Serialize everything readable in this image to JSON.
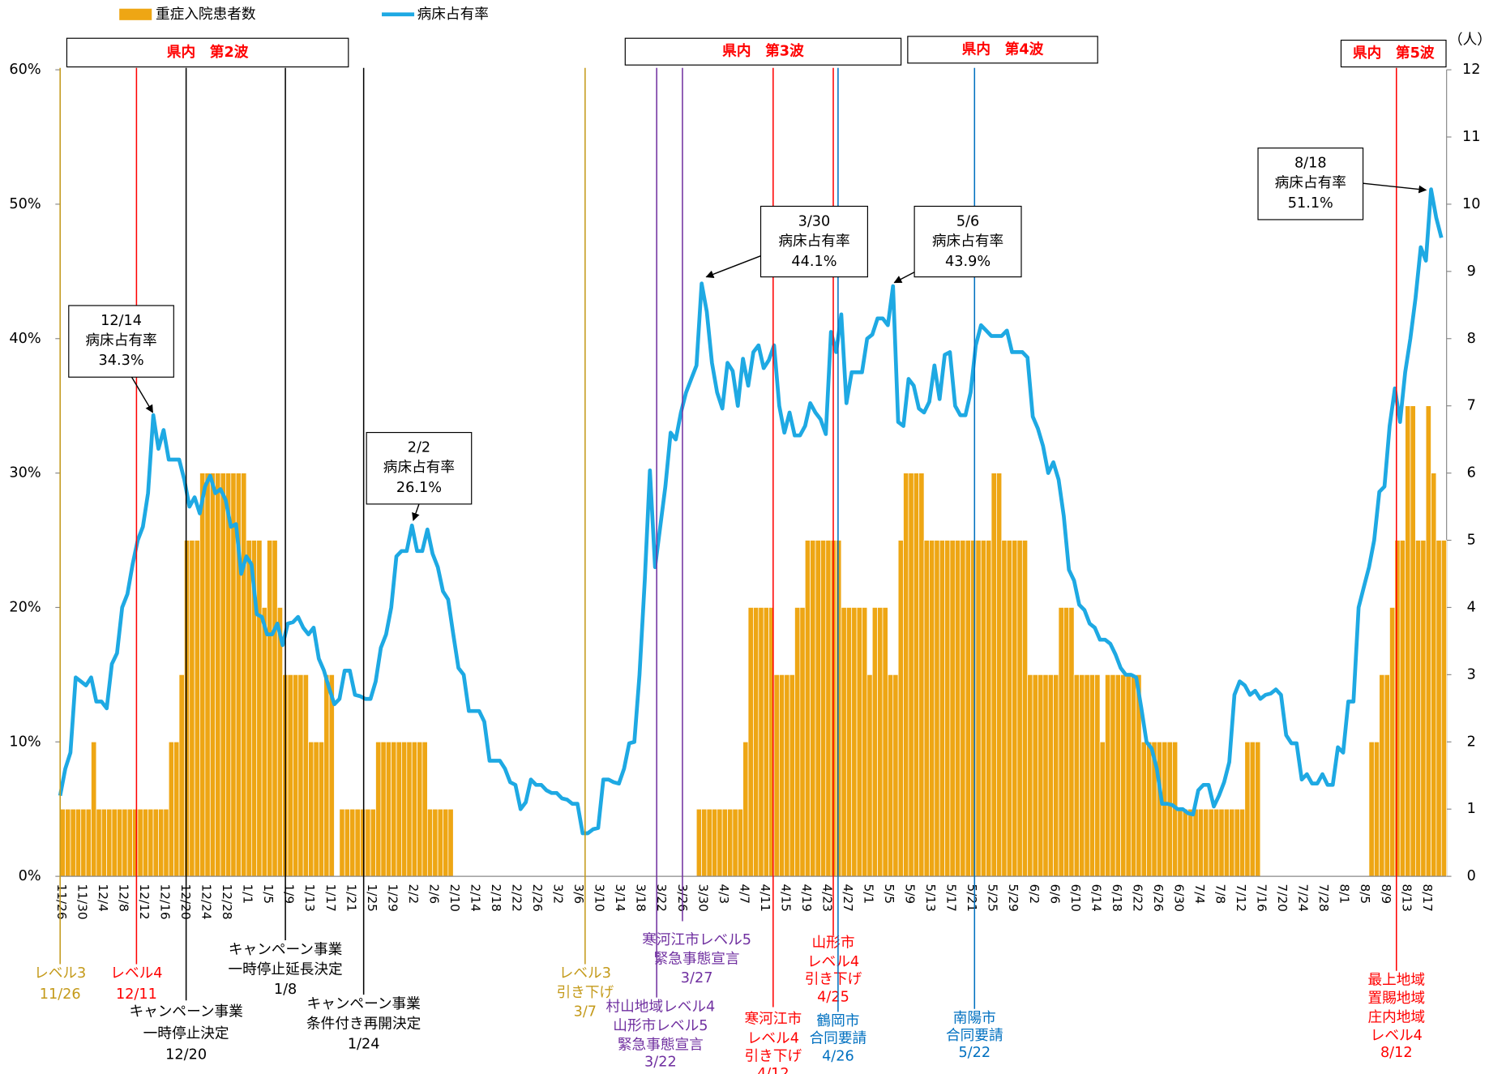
{
  "chart_data": {
    "type": "combo",
    "categories": [
      "11/26",
      null,
      null,
      null,
      "11/30",
      null,
      null,
      null,
      "12/4",
      null,
      null,
      null,
      "12/8",
      null,
      null,
      null,
      "12/12",
      null,
      null,
      null,
      "12/16",
      null,
      null,
      null,
      "12/20",
      null,
      null,
      null,
      "12/24",
      null,
      null,
      null,
      "12/28",
      null,
      null,
      null,
      "1/1",
      null,
      null,
      null,
      "1/5",
      null,
      null,
      null,
      "1/9",
      null,
      null,
      null,
      "1/13",
      null,
      null,
      null,
      "1/17",
      null,
      null,
      null,
      "1/21",
      null,
      null,
      null,
      "1/25",
      null,
      null,
      null,
      "1/29",
      null,
      null,
      null,
      "2/2",
      null,
      null,
      null,
      "2/6",
      null,
      null,
      null,
      "2/10",
      null,
      null,
      null,
      "2/14",
      null,
      null,
      null,
      "2/18",
      null,
      null,
      null,
      "2/22",
      null,
      null,
      null,
      "2/26",
      null,
      null,
      null,
      "3/2",
      null,
      null,
      null,
      "3/6",
      null,
      null,
      null,
      "3/10",
      null,
      null,
      null,
      "3/14",
      null,
      null,
      null,
      "3/18",
      null,
      null,
      null,
      "3/22",
      null,
      null,
      null,
      "3/26",
      null,
      null,
      null,
      "3/30",
      null,
      null,
      null,
      "4/3",
      null,
      null,
      null,
      "4/7",
      null,
      null,
      null,
      "4/11",
      null,
      null,
      null,
      "4/15",
      null,
      null,
      null,
      "4/19",
      null,
      null,
      null,
      "4/23",
      null,
      null,
      null,
      "4/27",
      null,
      null,
      null,
      "5/1",
      null,
      null,
      null,
      "5/5",
      null,
      null,
      null,
      "5/9",
      null,
      null,
      null,
      "5/13",
      null,
      null,
      null,
      "5/17",
      null,
      null,
      null,
      "5/21",
      null,
      null,
      null,
      "5/25",
      null,
      null,
      null,
      "5/29",
      null,
      null,
      null,
      "6/2",
      null,
      null,
      null,
      "6/6",
      null,
      null,
      null,
      "6/10",
      null,
      null,
      null,
      "6/14",
      null,
      null,
      null,
      "6/18",
      null,
      null,
      null,
      "6/22",
      null,
      null,
      null,
      "6/26",
      null,
      null,
      null,
      "6/30",
      null,
      null,
      null,
      "7/4",
      null,
      null,
      null,
      "7/8",
      null,
      null,
      null,
      "7/12",
      null,
      null,
      null,
      "7/16",
      null,
      null,
      null,
      "7/20",
      null,
      null,
      null,
      "7/24",
      null,
      null,
      null,
      "7/28",
      null,
      null,
      null,
      "8/1",
      null,
      null,
      null,
      "8/5",
      null,
      null,
      null,
      "8/9",
      null,
      null,
      null,
      "8/13",
      null,
      null,
      null,
      "8/17",
      null,
      null,
      null
    ],
    "series": [
      {
        "name": "重症入院患者数",
        "type": "bar",
        "axis": "y2",
        "color": "#eea614",
        "values": [
          1,
          1,
          1,
          1,
          1,
          1,
          2,
          1,
          1,
          1,
          1,
          1,
          1,
          1,
          1,
          1,
          1,
          1,
          1,
          1,
          1,
          2,
          2,
          3,
          5,
          5,
          5,
          6,
          6,
          6,
          6,
          6,
          6,
          6,
          6,
          6,
          5,
          5,
          5,
          4,
          5,
          5,
          4,
          3,
          3,
          3,
          3,
          3,
          2,
          2,
          2,
          3,
          3,
          0,
          1,
          1,
          1,
          1,
          1,
          1,
          1,
          2,
          2,
          2,
          2,
          2,
          2,
          2,
          2,
          2,
          2,
          1,
          1,
          1,
          1,
          1,
          0,
          0,
          0,
          0,
          0,
          0,
          0,
          0,
          0,
          0,
          0,
          0,
          0,
          0,
          0,
          0,
          0,
          0,
          0,
          0,
          0,
          0,
          0,
          0,
          0,
          0,
          0,
          0,
          0,
          0,
          0,
          0,
          0,
          0,
          0,
          0,
          0,
          0,
          0,
          0,
          0,
          0,
          0,
          0,
          0,
          0,
          0,
          1,
          1,
          1,
          1,
          1,
          1,
          1,
          1,
          1,
          2,
          4,
          4,
          4,
          4,
          4,
          3,
          3,
          3,
          3,
          4,
          4,
          5,
          5,
          5,
          5,
          5,
          5,
          5,
          4,
          4,
          4,
          4,
          4,
          3,
          4,
          4,
          4,
          3,
          3,
          5,
          6,
          6,
          6,
          6,
          5,
          5,
          5,
          5,
          5,
          5,
          5,
          5,
          5,
          5,
          5,
          5,
          5,
          6,
          6,
          5,
          5,
          5,
          5,
          5,
          3,
          3,
          3,
          3,
          3,
          3,
          4,
          4,
          4,
          3,
          3,
          3,
          3,
          3,
          2,
          3,
          3,
          3,
          3,
          3,
          3,
          3,
          2,
          2,
          2,
          2,
          2,
          2,
          2,
          1,
          1,
          1,
          1,
          1,
          1,
          1,
          1,
          1,
          1,
          1,
          1,
          1,
          2,
          2,
          2,
          0,
          0,
          0,
          0,
          0,
          0,
          0,
          0,
          0,
          0,
          0,
          0,
          0,
          0,
          0,
          0,
          0,
          0,
          0,
          0,
          0,
          2,
          2,
          3,
          3,
          4,
          5,
          5,
          7,
          7,
          5,
          5,
          7,
          6,
          5,
          5
        ]
      },
      {
        "name": "病床占有率",
        "type": "line",
        "color": "#1ea9e3",
        "values": [
          6.0,
          8.0,
          9.2,
          14.8,
          14.5,
          14.2,
          14.8,
          13.0,
          13.0,
          12.5,
          15.8,
          16.6,
          20.0,
          21.0,
          23.2,
          25.0,
          26.0,
          28.5,
          34.3,
          31.8,
          33.2,
          31.0,
          31.0,
          31.0,
          29.5,
          27.5,
          28.2,
          27.0,
          29.0,
          29.8,
          28.5,
          28.8,
          28.0,
          26.0,
          26.2,
          22.5,
          23.8,
          23.2,
          19.5,
          19.3,
          18.0,
          18.0,
          18.8,
          17.2,
          18.8,
          18.9,
          19.3,
          18.5,
          18.0,
          18.5,
          16.2,
          15.3,
          14.0,
          12.8,
          13.2,
          15.3,
          15.3,
          13.5,
          13.4,
          13.2,
          13.2,
          14.5,
          17.0,
          18.0,
          20.0,
          23.8,
          24.2,
          24.2,
          26.1,
          24.2,
          24.2,
          25.8,
          24.0,
          23.0,
          21.2,
          20.6,
          18.0,
          15.5,
          15.0,
          12.3,
          12.3,
          12.3,
          11.5,
          8.6,
          8.6,
          8.6,
          8.0,
          7.0,
          6.8,
          5.0,
          5.5,
          7.2,
          6.8,
          6.8,
          6.4,
          6.2,
          6.2,
          5.8,
          5.7,
          5.4,
          5.4,
          3.2,
          3.2,
          3.5,
          3.6,
          7.2,
          7.2,
          7.0,
          6.9,
          8.0,
          9.9,
          10.0,
          15.0,
          22.0,
          30.2,
          23.0,
          26.0,
          29.0,
          33.0,
          32.5,
          34.5,
          36.0,
          37.0,
          38.0,
          44.1,
          42.0,
          38.2,
          36.0,
          34.8,
          38.2,
          37.6,
          35.0,
          38.5,
          36.5,
          39.0,
          39.5,
          37.8,
          38.4,
          39.5,
          35.0,
          33.0,
          34.5,
          32.8,
          32.8,
          33.5,
          35.2,
          34.5,
          34.0,
          32.9,
          40.5,
          39.0,
          41.8,
          35.2,
          37.5,
          37.5,
          37.5,
          40.0,
          40.3,
          41.5,
          41.5,
          41.0,
          43.9,
          33.8,
          33.5,
          37.0,
          36.5,
          34.8,
          34.5,
          35.3,
          38.0,
          35.5,
          38.8,
          39.0,
          35.0,
          34.3,
          34.3,
          36.0,
          39.5,
          41.0,
          40.6,
          40.2,
          40.2,
          40.2,
          40.6,
          39.0,
          39.0,
          39.0,
          38.6,
          34.2,
          33.3,
          32.0,
          30.0,
          30.8,
          29.5,
          26.8,
          22.8,
          22.0,
          20.2,
          19.8,
          18.8,
          18.5,
          17.6,
          17.6,
          17.3,
          16.5,
          15.5,
          15.0,
          15.0,
          14.8,
          12.5,
          10.0,
          9.5,
          8.0,
          5.4,
          5.4,
          5.3,
          5.0,
          5.0,
          4.7,
          4.6,
          6.4,
          6.8,
          6.8,
          5.2,
          6.0,
          7.0,
          8.5,
          13.5,
          14.5,
          14.2,
          13.5,
          13.8,
          13.2,
          13.5,
          13.6,
          13.9,
          13.5,
          10.5,
          9.9,
          9.9,
          7.2,
          7.6,
          6.9,
          6.9,
          7.6,
          6.8,
          6.8,
          9.6,
          9.2,
          13.0,
          13.0,
          20.0,
          21.5,
          23.0,
          25.0,
          28.6,
          29.0,
          33.5,
          36.3,
          33.8,
          37.5,
          40.0,
          43.0,
          46.8,
          45.8,
          51.1,
          49.0,
          47.5
        ]
      }
    ],
    "ylim": [
      0,
      60
    ],
    "yticks": [
      {
        "value": 0,
        "label": "0%"
      },
      {
        "value": 10,
        "label": "10%"
      },
      {
        "value": 20,
        "label": "20%"
      },
      {
        "value": 30,
        "label": "30%"
      },
      {
        "value": 40,
        "label": "40%"
      },
      {
        "value": 50,
        "label": "50%"
      },
      {
        "value": 60,
        "label": "60%"
      }
    ],
    "y2lim": [
      0,
      12
    ],
    "y2ticks": [
      0,
      1,
      2,
      3,
      4,
      5,
      6,
      7,
      8,
      9,
      10,
      11,
      12
    ],
    "y2_unit": "（人）",
    "legend": "top-left",
    "waves": [
      "県内　第2波",
      "県内　第3波",
      "県内　第4波",
      "県内　第5波"
    ],
    "callouts": [
      {
        "date": "12/14",
        "label": "病床占有率",
        "value": "34.3%"
      },
      {
        "date": "2/2",
        "label": "病床占有率",
        "value": "26.1%"
      },
      {
        "date": "3/30",
        "label": "病床占有率",
        "value": "44.1%"
      },
      {
        "date": "5/6",
        "label": "病床占有率",
        "value": "43.9%"
      },
      {
        "date": "8/18",
        "label": "病床占有率",
        "value": "51.1%"
      }
    ],
    "events": [
      {
        "lines": [
          "レベル3",
          "11/26"
        ],
        "color": "#c49a1a"
      },
      {
        "lines": [
          "レベル4",
          "12/11"
        ],
        "color": "#ff0000"
      },
      {
        "lines": [
          "キャンペーン事業",
          "一時停止決定",
          "12/20"
        ],
        "color": "#000000"
      },
      {
        "lines": [
          "キャンペーン事業",
          "一時停止延長決定",
          "1/8"
        ],
        "color": "#000000"
      },
      {
        "lines": [
          "キャンペーン事業",
          "条件付き再開決定",
          "1/24"
        ],
        "color": "#000000"
      },
      {
        "lines": [
          "レベル3",
          "引き下げ",
          "3/7"
        ],
        "color": "#c49a1a"
      },
      {
        "lines": [
          "村山地域レベル4",
          "山形市レベル5",
          "緊急事態宣言",
          "3/22"
        ],
        "color": "#7030a0"
      },
      {
        "lines": [
          "寒河江市レベル5",
          "緊急事態宣言",
          "3/27"
        ],
        "color": "#7030a0"
      },
      {
        "lines": [
          "寒河江市",
          "レベル4",
          "引き下げ",
          "4/12"
        ],
        "color": "#ff0000"
      },
      {
        "lines": [
          "山形市",
          "レベル4",
          "引き下げ",
          "4/25"
        ],
        "color": "#ff0000"
      },
      {
        "lines": [
          "鶴岡市",
          "合同要請",
          "4/26"
        ],
        "color": "#0070c0"
      },
      {
        "lines": [
          "南陽市",
          "合同要請",
          "5/22"
        ],
        "color": "#0070c0"
      },
      {
        "lines": [
          "最上地域",
          "置賜地域",
          "庄内地域",
          "レベル4",
          "8/12"
        ],
        "color": "#ff0000"
      }
    ]
  }
}
